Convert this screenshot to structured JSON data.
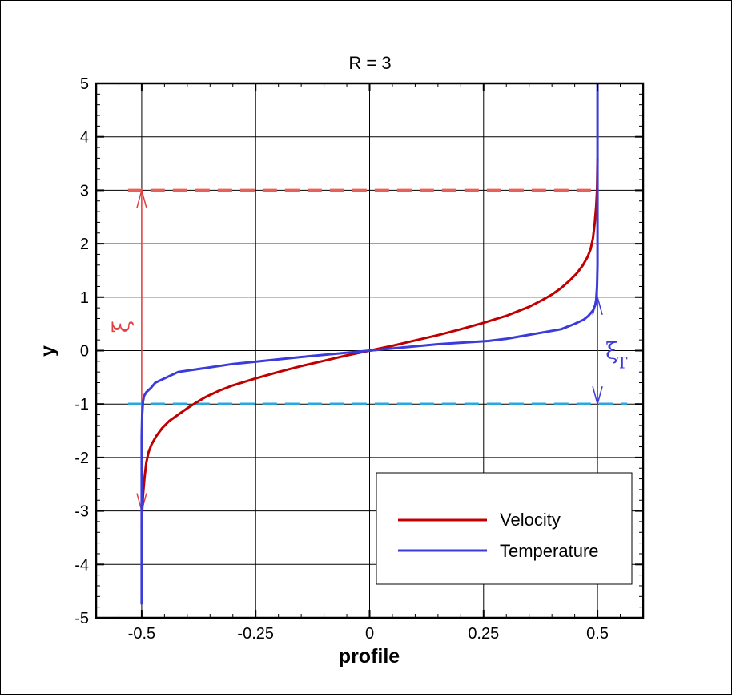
{
  "chart_data": {
    "type": "line",
    "title": "R = 3",
    "xlabel": "profile",
    "ylabel": "y",
    "xlim": [
      -0.6,
      0.6
    ],
    "ylim": [
      -5,
      5
    ],
    "xticks": [
      -0.5,
      -0.25,
      0,
      0.25,
      0.5
    ],
    "xtick_labels": [
      "-0.5",
      "-0.25",
      "0",
      "0.25",
      "0.5"
    ],
    "yticks": [
      -5,
      -4,
      -3,
      -2,
      -1,
      0,
      1,
      2,
      3,
      4,
      5
    ],
    "ytick_labels": [
      "-5",
      "-4",
      "-3",
      "-2",
      "-1",
      "0",
      "1",
      "2",
      "3",
      "4",
      "5"
    ],
    "grid": true,
    "legend_position": "bottom-right",
    "series": [
      {
        "name": "Velocity",
        "color": "#c00000",
        "x": [
          -0.5,
          -0.499,
          -0.497,
          -0.494,
          -0.49,
          -0.485,
          -0.478,
          -0.468,
          -0.455,
          -0.44,
          -0.42,
          -0.4,
          -0.38,
          -0.36,
          -0.33,
          -0.3,
          -0.25,
          -0.2,
          -0.15,
          -0.1,
          -0.05,
          0,
          0.05,
          0.1,
          0.15,
          0.2,
          0.25,
          0.3,
          0.35,
          0.38,
          0.4,
          0.42,
          0.44,
          0.455,
          0.468,
          0.478,
          0.485,
          0.49,
          0.494,
          0.497,
          0.499,
          0.5
        ],
        "y": [
          -3.3,
          -3.0,
          -2.7,
          -2.4,
          -2.1,
          -1.9,
          -1.75,
          -1.6,
          -1.45,
          -1.32,
          -1.2,
          -1.08,
          -0.97,
          -0.87,
          -0.75,
          -0.65,
          -0.52,
          -0.4,
          -0.29,
          -0.19,
          -0.09,
          0,
          0.09,
          0.19,
          0.29,
          0.4,
          0.52,
          0.65,
          0.82,
          0.95,
          1.05,
          1.17,
          1.32,
          1.45,
          1.6,
          1.75,
          1.9,
          2.1,
          2.4,
          2.7,
          3.0,
          3.6
        ]
      },
      {
        "name": "Temperature",
        "color": "#3b3bdc",
        "x": [
          -0.5,
          -0.5,
          -0.5,
          -0.499,
          -0.497,
          -0.495,
          -0.49,
          -0.48,
          -0.47,
          -0.45,
          -0.42,
          -0.3,
          -0.15,
          0,
          0.15,
          0.26,
          0.3,
          0.42,
          0.45,
          0.47,
          0.48,
          0.49,
          0.495,
          0.497,
          0.499,
          0.5,
          0.5,
          0.5
        ],
        "y": [
          -4.75,
          -2.5,
          -1.6,
          -1.2,
          -0.95,
          -0.85,
          -0.78,
          -0.7,
          -0.6,
          -0.52,
          -0.4,
          -0.25,
          -0.12,
          0,
          0.12,
          0.18,
          0.22,
          0.4,
          0.5,
          0.58,
          0.65,
          0.75,
          0.85,
          0.95,
          1.2,
          1.6,
          2.5,
          5.0
        ]
      }
    ],
    "reference_lines": [
      {
        "y": 3,
        "color": "#e8605a",
        "style": "dashed"
      },
      {
        "y": -1,
        "color": "#29a8e0",
        "style": "dashed"
      }
    ],
    "annotations": [
      {
        "text": "ξ",
        "color": "#e04040",
        "from": [
          -0.5,
          -3
        ],
        "to": [
          -0.5,
          3
        ]
      },
      {
        "text": "ξ",
        "subscript": "T",
        "color": "#3b3bdc",
        "from": [
          0.5,
          1
        ],
        "to": [
          0.5,
          -1
        ]
      }
    ]
  }
}
